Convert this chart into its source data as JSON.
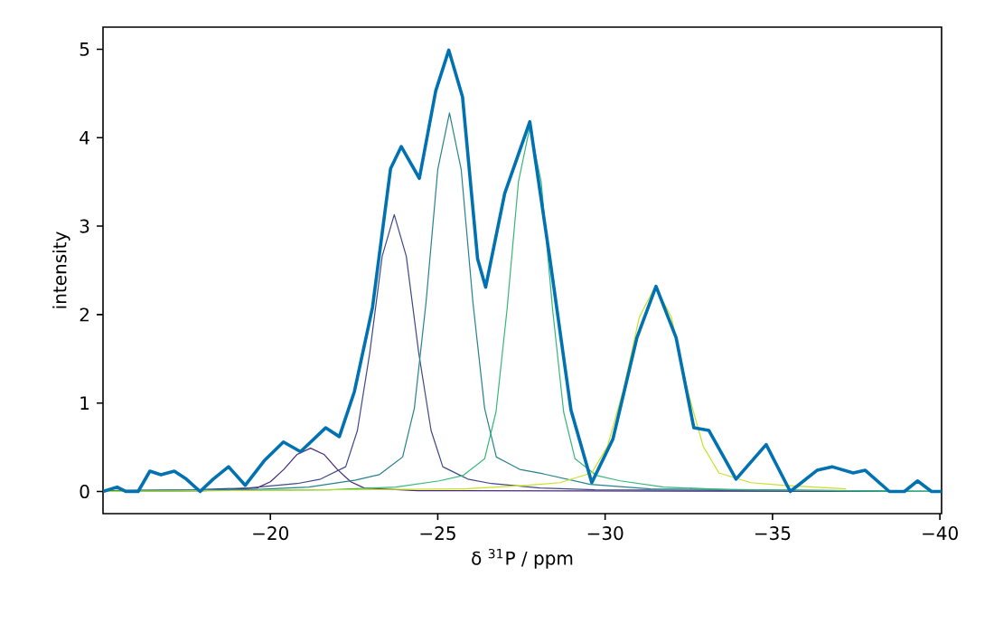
{
  "chart_data": {
    "type": "line",
    "xlabel": "δ $^{31}$P / ppm",
    "ylabel": "intensity",
    "xlim": [
      -15,
      -40.05
    ],
    "ylim": [
      -0.25,
      5.25
    ],
    "xticks": [
      {
        "value": -20,
        "label": "−20"
      },
      {
        "value": -25,
        "label": "−25"
      },
      {
        "value": -30,
        "label": "−30"
      },
      {
        "value": -35,
        "label": "−35"
      },
      {
        "value": -40,
        "label": "−40"
      }
    ],
    "yticks": [
      0,
      1,
      2,
      3,
      4,
      5
    ],
    "grid": false,
    "marker": "none",
    "line_style": "solid",
    "series": [
      {
        "color": "#0072b2",
        "x": [
          -15.0,
          -15.42,
          -15.69,
          -16.05,
          -16.4,
          -16.73,
          -17.13,
          -17.49,
          -17.9,
          -18.29,
          -18.75,
          -19.25,
          -19.82,
          -20.39,
          -20.9,
          -21.65,
          -22.06,
          -22.51,
          -23.05,
          -23.59,
          -23.91,
          -24.45,
          -24.94,
          -25.33,
          -25.74,
          -26.19,
          -26.43,
          -27.0,
          -27.75,
          -28.35,
          -28.98,
          -29.6,
          -30.23,
          -30.95,
          -31.52,
          -32.12,
          -32.65,
          -33.1,
          -33.91,
          -34.81,
          -35.53,
          -36.33,
          -36.78,
          -37.41,
          -37.77,
          -38.49,
          -38.94,
          -39.33,
          -39.75,
          -40.05
        ],
        "values": [
          0.0,
          0.05,
          0.0,
          0.0,
          0.23,
          0.19,
          0.23,
          0.14,
          0.0,
          0.14,
          0.28,
          0.07,
          0.35,
          0.56,
          0.45,
          0.72,
          0.62,
          1.13,
          2.08,
          3.65,
          3.9,
          3.54,
          4.53,
          4.99,
          4.46,
          2.63,
          2.31,
          3.37,
          4.18,
          2.63,
          0.92,
          0.1,
          0.59,
          1.74,
          2.32,
          1.74,
          0.72,
          0.69,
          0.14,
          0.53,
          0.0,
          0.24,
          0.28,
          0.21,
          0.24,
          0.0,
          0.0,
          0.12,
          0.0,
          0.0
        ]
      },
      {
        "color": "#482878",
        "x": [
          -15,
          -18.0,
          -19.6,
          -20.0,
          -20.4,
          -20.8,
          -21.2,
          -21.6,
          -22.0,
          -22.4,
          -22.8,
          -24.4,
          -40.05
        ],
        "values": [
          0.0,
          0.01,
          0.04,
          0.11,
          0.25,
          0.42,
          0.49,
          0.42,
          0.25,
          0.11,
          0.04,
          0.01,
          0.0
        ]
      },
      {
        "color": "#3e4989",
        "x": [
          -15,
          -17.7,
          -19.35,
          -20.8,
          -21.5,
          -22.25,
          -22.6,
          -22.97,
          -23.34,
          -23.7,
          -24.06,
          -24.43,
          -24.8,
          -25.15,
          -25.9,
          -26.6,
          -28.05,
          -29.7,
          -40.05
        ],
        "values": [
          0.01,
          0.02,
          0.04,
          0.09,
          0.14,
          0.28,
          0.69,
          1.57,
          2.66,
          3.13,
          2.66,
          1.57,
          0.69,
          0.28,
          0.14,
          0.09,
          0.04,
          0.02,
          0.0
        ]
      },
      {
        "color": "#26828e",
        "x": [
          -15,
          -19.35,
          -21.15,
          -22.55,
          -23.25,
          -23.95,
          -24.3,
          -24.65,
          -25.0,
          -25.35,
          -25.7,
          -26.05,
          -26.4,
          -26.75,
          -27.45,
          -28.15,
          -29.55,
          -31.35,
          -40.05
        ],
        "values": [
          0.01,
          0.02,
          0.05,
          0.13,
          0.19,
          0.39,
          0.94,
          2.14,
          3.64,
          4.28,
          3.64,
          2.14,
          0.94,
          0.39,
          0.25,
          0.2,
          0.08,
          0.03,
          0.0
        ]
      },
      {
        "color": "#35b779",
        "x": [
          -15,
          -21.75,
          -23.75,
          -25.05,
          -25.75,
          -26.4,
          -26.74,
          -27.07,
          -27.41,
          -27.75,
          -28.09,
          -28.43,
          -28.76,
          -29.1,
          -29.75,
          -30.45,
          -31.75,
          -33.75,
          -40.05
        ],
        "values": [
          0.0,
          0.02,
          0.05,
          0.12,
          0.18,
          0.37,
          0.9,
          2.06,
          3.5,
          4.12,
          3.5,
          2.06,
          0.9,
          0.37,
          0.18,
          0.12,
          0.05,
          0.02,
          0.0
        ]
      },
      {
        "color": "#c8e020",
        "x": [
          -15,
          -25.8,
          -27.7,
          -28.65,
          -29.6,
          -30.07,
          -30.55,
          -31.02,
          -31.5,
          -31.98,
          -32.45,
          -32.93,
          -33.4,
          -34.35,
          -35.3,
          -37.2
        ],
        "values": [
          0.0,
          0.03,
          0.07,
          0.1,
          0.21,
          0.51,
          1.16,
          1.97,
          2.32,
          1.97,
          1.16,
          0.51,
          0.21,
          0.1,
          0.07,
          0.03
        ]
      }
    ]
  }
}
